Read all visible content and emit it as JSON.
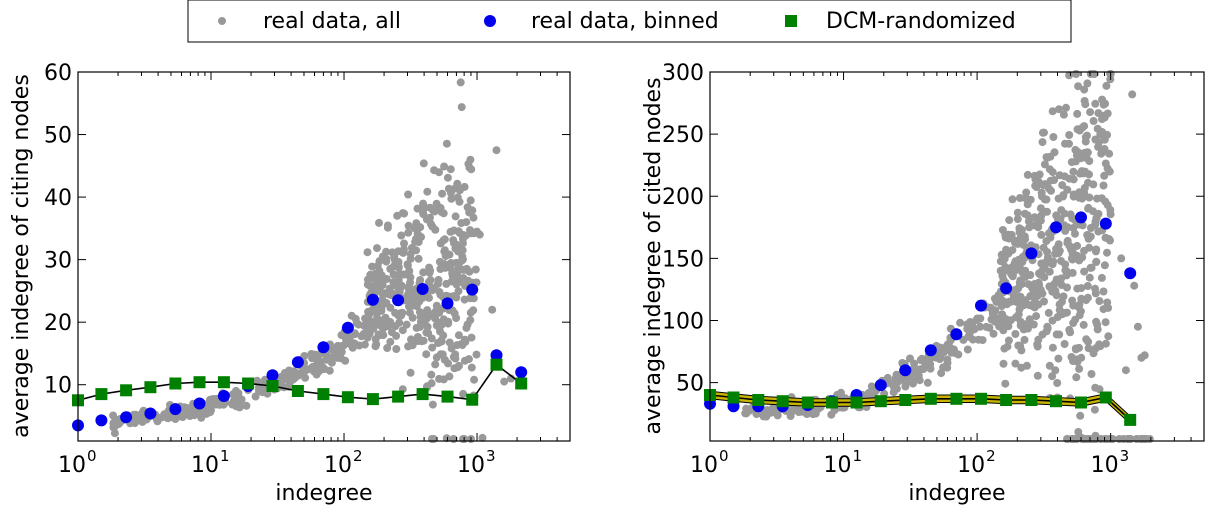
{
  "legend": {
    "items": [
      {
        "label": "real data, all",
        "marker": "circle-small",
        "color": "#999999"
      },
      {
        "label": "real data, binned",
        "marker": "circle",
        "color": "#0000ee"
      },
      {
        "label": "DCM-randomized",
        "marker": "square",
        "color": "#008000"
      }
    ]
  },
  "colors": {
    "all": "#999999",
    "binned": "#0000ee",
    "dcm": "#008000",
    "dcm_band": "#c8b400",
    "line": "#000000"
  },
  "chart_data": [
    {
      "type": "scatter",
      "xlabel": "indegree",
      "ylabel": "average indegree of citing nodes",
      "xscale": "log",
      "xlim": [
        1,
        5000
      ],
      "ylim": [
        1,
        60
      ],
      "xticks": [
        {
          "v": 1,
          "base": "10",
          "exp": "0"
        },
        {
          "v": 10,
          "base": "10",
          "exp": "1"
        },
        {
          "v": 100,
          "base": "10",
          "exp": "2"
        },
        {
          "v": 1000,
          "base": "10",
          "exp": "3"
        }
      ],
      "yticks": [
        10,
        20,
        30,
        40,
        50,
        60
      ],
      "binned": {
        "x": [
          1,
          1.5,
          2.3,
          3.5,
          5.4,
          8.2,
          12.5,
          19,
          29,
          45,
          70,
          107,
          165,
          255,
          390,
          600,
          920,
          1400,
          2150
        ],
        "y": [
          3.5,
          4.3,
          4.8,
          5.4,
          6.1,
          7.0,
          8.2,
          9.8,
          11.5,
          13.6,
          16,
          19.1,
          23.6,
          23.5,
          25.3,
          23.0,
          25.2,
          14.7,
          12.0
        ]
      },
      "dcm": {
        "x": [
          1,
          1.5,
          2.3,
          3.5,
          5.4,
          8.2,
          12.5,
          19,
          29,
          45,
          70,
          107,
          165,
          255,
          390,
          600,
          920,
          1400,
          2150
        ],
        "y": [
          7.5,
          8.5,
          9.1,
          9.6,
          10.2,
          10.4,
          10.4,
          10.2,
          9.8,
          9.0,
          8.5,
          8.0,
          7.7,
          8.1,
          8.5,
          8.1,
          7.6,
          13.2,
          10.2
        ]
      },
      "cloud": "left"
    },
    {
      "type": "scatter",
      "xlabel": "indegree",
      "ylabel": "average indegree of cited nodes",
      "xscale": "log",
      "xlim": [
        1,
        5000
      ],
      "ylim": [
        3,
        300
      ],
      "xticks": [
        {
          "v": 1,
          "base": "10",
          "exp": "0"
        },
        {
          "v": 10,
          "base": "10",
          "exp": "1"
        },
        {
          "v": 100,
          "base": "10",
          "exp": "2"
        },
        {
          "v": 1000,
          "base": "10",
          "exp": "3"
        }
      ],
      "yticks": [
        50,
        100,
        150,
        200,
        250,
        300
      ],
      "binned": {
        "x": [
          1,
          1.5,
          2.3,
          3.5,
          5.4,
          8.2,
          12.5,
          19,
          29,
          45,
          70,
          107,
          165,
          255,
          390,
          600,
          920,
          1400
        ],
        "y": [
          33,
          31,
          31,
          31,
          32,
          35,
          40,
          48,
          60,
          76,
          89,
          112,
          126,
          154,
          175,
          183,
          178,
          138
        ]
      },
      "dcm": {
        "x": [
          1,
          1.5,
          2.3,
          3.5,
          5.4,
          8.2,
          12.5,
          19,
          29,
          45,
          70,
          107,
          165,
          255,
          390,
          600,
          920,
          1400
        ],
        "y": [
          40,
          38,
          36,
          35,
          34,
          34,
          34,
          35,
          36,
          37,
          37,
          37,
          36,
          36,
          35,
          34,
          38,
          20
        ]
      },
      "cloud": "right"
    }
  ]
}
